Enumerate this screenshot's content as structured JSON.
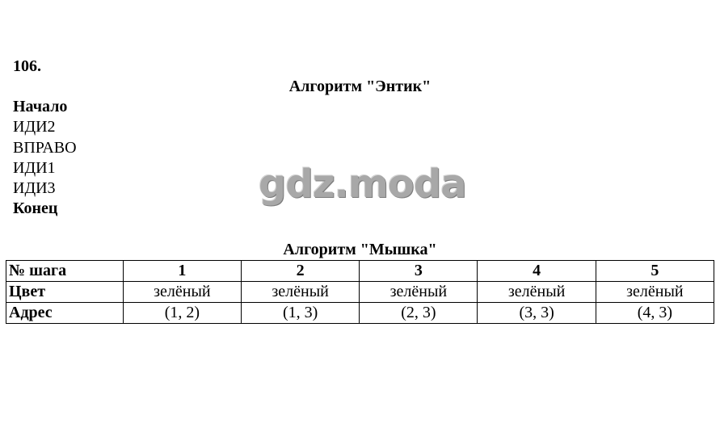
{
  "task_number": "106.",
  "algorithm1": {
    "title": "Алгоритм \"Энтик\"",
    "lines": [
      "Начало",
      "ИДИ2",
      "ВПРАВО",
      "ИДИ1",
      "ИДИ3",
      "Конец"
    ]
  },
  "watermark": "gdz.moda",
  "algorithm2": {
    "title": "Алгоритм \"Мышка\"",
    "rows": [
      {
        "label": "№ шага",
        "cells": [
          "1",
          "2",
          "3",
          "4",
          "5"
        ]
      },
      {
        "label": "Цвет",
        "cells": [
          "зелёный",
          "зелёный",
          "зелёный",
          "зелёный",
          "зелёный"
        ]
      },
      {
        "label": "Адрес",
        "cells": [
          "(1, 2)",
          "(1, 3)",
          "(2, 3)",
          "(3, 3)",
          "(4, 3)"
        ]
      }
    ]
  }
}
